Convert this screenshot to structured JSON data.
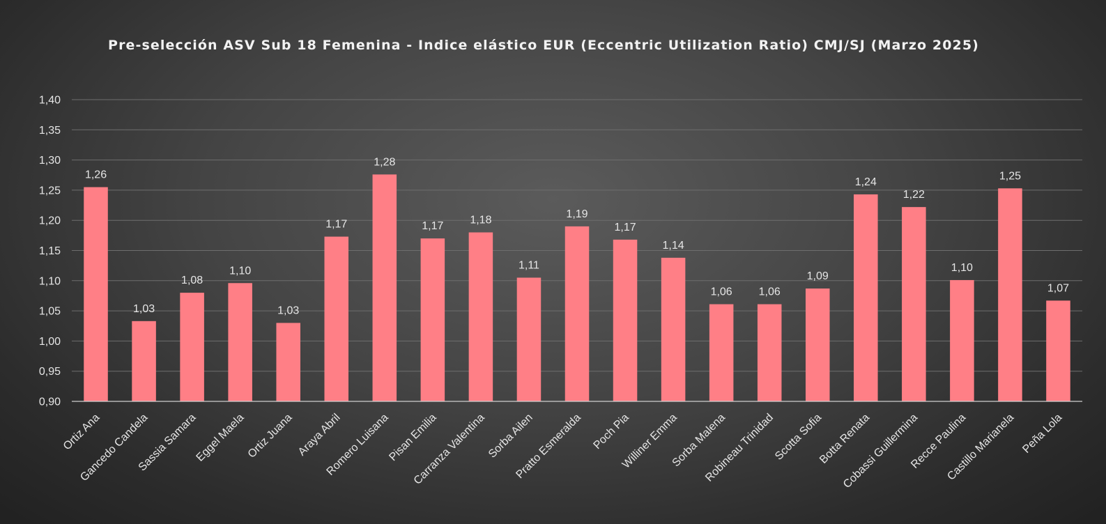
{
  "chart_data": {
    "type": "bar",
    "title": "Pre-selección ASV Sub 18 Femenina - Indice elástico EUR (Eccentric Utilization Ratio) CMJ/SJ (Marzo 2025)",
    "xlabel": "",
    "ylabel": "",
    "ylim": [
      0.9,
      1.4
    ],
    "yticks": [
      "0,90",
      "0,95",
      "1,00",
      "1,05",
      "1,10",
      "1,15",
      "1,20",
      "1,25",
      "1,30",
      "1,35",
      "1,40"
    ],
    "grid": true,
    "legend": "none",
    "bar_color": "#ff7f86",
    "categories": [
      "Ortiz Ana",
      "Gancedo Candela",
      "Sassia Samara",
      "Eggel Maela",
      "Ortiz Juana",
      "Araya Abril",
      "Romero Luisana",
      "Pisan Emilia",
      "Carranza Valentina",
      "Sorba Ailen",
      "Pratto Esmeralda",
      "Poch Pia",
      "Williner Emma",
      "Sorba Malena",
      "Robineau Trinidad",
      "Scotta Sofia",
      "Botta Renata",
      "Cobassi Guillermina",
      "Recce Paulina",
      "Castillo Marianela",
      "Peña Lola"
    ],
    "values": [
      1.255,
      1.033,
      1.08,
      1.096,
      1.03,
      1.173,
      1.276,
      1.17,
      1.18,
      1.105,
      1.19,
      1.168,
      1.138,
      1.061,
      1.061,
      1.087,
      1.243,
      1.222,
      1.101,
      1.253,
      1.067
    ],
    "labels": [
      "1,26",
      "1,03",
      "1,08",
      "1,10",
      "1,03",
      "1,17",
      "1,28",
      "1,17",
      "1,18",
      "1,11",
      "1,19",
      "1,17",
      "1,14",
      "1,06",
      "1,06",
      "1,09",
      "1,24",
      "1,22",
      "1,10",
      "1,25",
      "1,07"
    ]
  }
}
